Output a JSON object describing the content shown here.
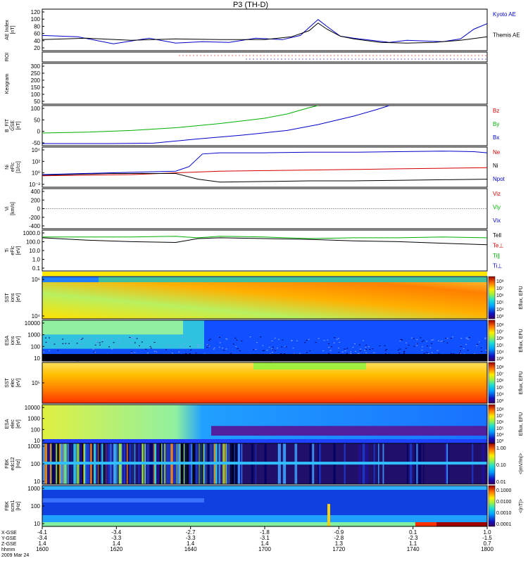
{
  "title": "P3 (TH-D)",
  "colors": {
    "red": "#d40000",
    "green": "#00b000",
    "blue": "#0000c8",
    "black": "#000000"
  },
  "chart_data": [
    {
      "type": "line",
      "panel": "ae",
      "ylabel": [
        "AE Index",
        "[nT]"
      ],
      "ylim": [
        0,
        120
      ],
      "yticks": [
        "120",
        "100",
        "80",
        "60",
        "40",
        "20"
      ],
      "legend": [
        "Kyoto AE",
        "Themis AE"
      ],
      "series": [
        {
          "name": "Kyoto AE",
          "color": "blue",
          "x": [
            0,
            0.08,
            0.16,
            0.24,
            0.3,
            0.36,
            0.42,
            0.48,
            0.54,
            0.58,
            0.62,
            0.64,
            0.67,
            0.7,
            0.74,
            0.78,
            0.82,
            0.86,
            0.9,
            0.94,
            0.97,
            1.0
          ],
          "y": [
            44,
            40,
            20,
            36,
            22,
            26,
            24,
            36,
            32,
            44,
            90,
            70,
            42,
            36,
            30,
            24,
            30,
            28,
            26,
            34,
            62,
            78
          ]
        },
        {
          "name": "Themis AE",
          "color": "black",
          "x": [
            0,
            0.1,
            0.2,
            0.3,
            0.4,
            0.5,
            0.56,
            0.6,
            0.62,
            0.64,
            0.67,
            0.7,
            0.76,
            0.82,
            0.88,
            0.94,
            1.0
          ],
          "y": [
            32,
            36,
            30,
            34,
            32,
            32,
            40,
            58,
            80,
            62,
            42,
            34,
            24,
            22,
            24,
            30,
            40
          ]
        }
      ]
    },
    {
      "type": "scatter",
      "panel": "roi",
      "ylabel": [
        "ROI"
      ]
    },
    {
      "type": "line",
      "panel": "keogram",
      "ylabel": [
        "Keogram"
      ],
      "yticks": [
        "300",
        "250",
        "200",
        "150",
        "100",
        "50"
      ]
    },
    {
      "type": "line",
      "panel": "bfield",
      "ylabel": [
        "B_FIT",
        "GSE",
        "[nT]"
      ],
      "ylim": [
        -50,
        140
      ],
      "yticks": [
        "100",
        "50",
        "0",
        "-50"
      ],
      "legend": [
        "Bz",
        "By",
        "Bx"
      ],
      "series": [
        {
          "name": "By",
          "color": "green",
          "x": [
            0,
            0.1,
            0.2,
            0.3,
            0.4,
            0.5,
            0.55,
            0.6,
            0.62
          ],
          "y": [
            10,
            14,
            22,
            35,
            55,
            80,
            100,
            130,
            140
          ]
        },
        {
          "name": "Bx",
          "color": "blue",
          "x": [
            0,
            0.15,
            0.25,
            0.3,
            0.35,
            0.45,
            0.55,
            0.62,
            0.7,
            0.75,
            0.78
          ],
          "y": [
            -40,
            -40,
            -38,
            -28,
            -18,
            0,
            22,
            50,
            90,
            120,
            140
          ]
        }
      ]
    },
    {
      "type": "line",
      "panel": "density",
      "ylabel": [
        "Ni",
        "eFlc",
        "[1/cc]"
      ],
      "ylim": [
        -2,
        5
      ],
      "yticks": [
        "10⁴",
        "10²",
        "10⁰",
        "10⁻²"
      ],
      "legend": [
        "Ne",
        "Ni",
        "Npot"
      ],
      "series": [
        {
          "name": "Ne",
          "color": "red",
          "x": [
            0,
            0.2,
            0.3,
            0.4,
            0.5,
            0.6,
            0.7,
            0.8,
            0.9,
            1.0
          ],
          "y": [
            0.0,
            0.2,
            0.5,
            0.8,
            0.9,
            1.0,
            1.1,
            1.2,
            1.3,
            1.4
          ]
        },
        {
          "name": "Ni",
          "color": "black",
          "x": [
            0,
            0.15,
            0.3,
            0.35,
            0.4,
            0.5,
            0.6,
            0.7,
            0.8,
            0.9,
            1.0
          ],
          "y": [
            0.1,
            0.4,
            0.4,
            -0.6,
            -1.1,
            -1.0,
            -0.9,
            -0.9,
            -0.8,
            -0.7,
            -0.6
          ]
        },
        {
          "name": "Npot",
          "color": "blue",
          "x": [
            0,
            0.15,
            0.3,
            0.33,
            0.36,
            0.4,
            0.5,
            0.6,
            0.7,
            0.8,
            0.9,
            0.97,
            1.0
          ],
          "y": [
            0.2,
            0.5,
            0.8,
            1.6,
            3.8,
            4.0,
            4.0,
            4.1,
            4.1,
            4.2,
            4.3,
            4.2,
            4.0
          ]
        }
      ]
    },
    {
      "type": "line",
      "panel": "velocity",
      "ylabel": [
        "Vi",
        "[km/s]"
      ],
      "ylim": [
        -500,
        500
      ],
      "yticks": [
        "400",
        "200",
        "0",
        "-200",
        "-400"
      ],
      "legend": [
        "Viz",
        "Viy",
        "Vix"
      ]
    },
    {
      "type": "line",
      "panel": "temperature",
      "ylabel": [
        "Ti",
        "eFlc",
        "[eV]"
      ],
      "ylim": [
        -1.3,
        4
      ],
      "yticks": [
        "1000.0",
        "100.0",
        "10.0",
        "1.0",
        "0.1"
      ],
      "legend": [
        "Tell",
        "Te⊥",
        "Ti∥",
        "Ti⊥"
      ],
      "series": [
        {
          "name": "Ti",
          "color": "green",
          "x": [
            0,
            0.2,
            0.3,
            0.35,
            0.4,
            0.5,
            0.6,
            0.7,
            0.8,
            0.9,
            1.0
          ],
          "y": [
            3.1,
            3.1,
            3.2,
            3.0,
            3.2,
            3.1,
            2.9,
            3.0,
            3.0,
            3.1,
            3.0
          ]
        },
        {
          "name": "Te",
          "color": "black",
          "x": [
            0,
            0.1,
            0.2,
            0.3,
            0.35,
            0.4,
            0.5,
            0.6,
            0.7,
            0.8,
            0.9,
            1.0
          ],
          "y": [
            3.0,
            2.7,
            2.5,
            2.4,
            2.9,
            3.0,
            2.9,
            2.8,
            2.6,
            2.5,
            2.3,
            2.1
          ]
        }
      ]
    },
    {
      "type": "heatmap",
      "panel": "spec1",
      "ylabel": [
        "SST",
        "ions",
        "[eV]"
      ],
      "yticks": [
        "10⁶",
        "10⁴"
      ],
      "cbar": {
        "label": "Eflux, EFU",
        "ticks": [
          "10⁸",
          "10⁷",
          "10⁶",
          "10⁵",
          "10⁴",
          "10³"
        ]
      }
    },
    {
      "type": "heatmap",
      "panel": "spec2",
      "ylabel": [
        "ESA",
        "ions",
        "[eV]"
      ],
      "yticks": [
        "10000",
        "1000",
        "100",
        "10"
      ],
      "cbar": {
        "label": "Eflux, EFU",
        "ticks": [
          "10⁸",
          "10⁷",
          "10⁶",
          "10⁵",
          "10⁴",
          "10³"
        ]
      }
    },
    {
      "type": "heatmap",
      "panel": "spec3",
      "ylabel": [
        "SST",
        "elec",
        "[eV]"
      ],
      "yticks": [
        "10⁵"
      ],
      "cbar": {
        "label": "Eflux, EFU",
        "ticks": [
          "10⁸",
          "10⁷",
          "10⁶",
          "10⁵",
          "10⁴",
          "10³"
        ]
      }
    },
    {
      "type": "heatmap",
      "panel": "spec4",
      "ylabel": [
        "ESA",
        "elec",
        "[eV]"
      ],
      "yticks": [
        "10000",
        "1000",
        "100",
        "10"
      ],
      "cbar": {
        "label": "Eflux, EFU",
        "ticks": [
          "10⁸",
          "10⁷",
          "10⁶",
          "10⁵",
          "10⁴",
          "10³"
        ]
      }
    },
    {
      "type": "heatmap",
      "panel": "spec5",
      "ylabel": [
        "FBK",
        "edc12",
        "[Hz]"
      ],
      "yticks": [
        "1000",
        "100",
        "10"
      ],
      "cbar": {
        "label": "<|mV/m|>",
        "ticks": [
          "1.00",
          "0.10",
          "0.01"
        ]
      }
    },
    {
      "type": "heatmap",
      "panel": "spec6",
      "ylabel": [
        "FBK",
        "scm1",
        "[Hz]"
      ],
      "yticks": [
        "1000",
        "100",
        "10"
      ],
      "cbar": {
        "label": "<|nT|>",
        "ticks": [
          "0.1000",
          "0.0100",
          "0.0010",
          "0.0001"
        ],
        "top": "0.0010"
      }
    }
  ],
  "x_axis": {
    "row_labels": [
      "X-GSE",
      "Y-GSE",
      "Z-GSE",
      "hhmm",
      "2009 Mar 24"
    ],
    "ticks": [
      {
        "x": "-4.1",
        "y": "-3.4",
        "z": "1.4",
        "t": "1600"
      },
      {
        "x": "-3.4",
        "y": "-3.3",
        "z": "1.4",
        "t": "1620"
      },
      {
        "x": "-2.7",
        "y": "-3.3",
        "z": "1.4",
        "t": "1640"
      },
      {
        "x": "-1.8",
        "y": "-3.1",
        "z": "1.4",
        "t": "1700"
      },
      {
        "x": "-0.9",
        "y": "-2.8",
        "z": "1.3",
        "t": "1720"
      },
      {
        "x": "0.1",
        "y": "-2.3",
        "z": "1.1",
        "t": "1740"
      },
      {
        "x": "1.0",
        "y": "-1.5",
        "z": "0.7",
        "t": "1800"
      }
    ]
  }
}
